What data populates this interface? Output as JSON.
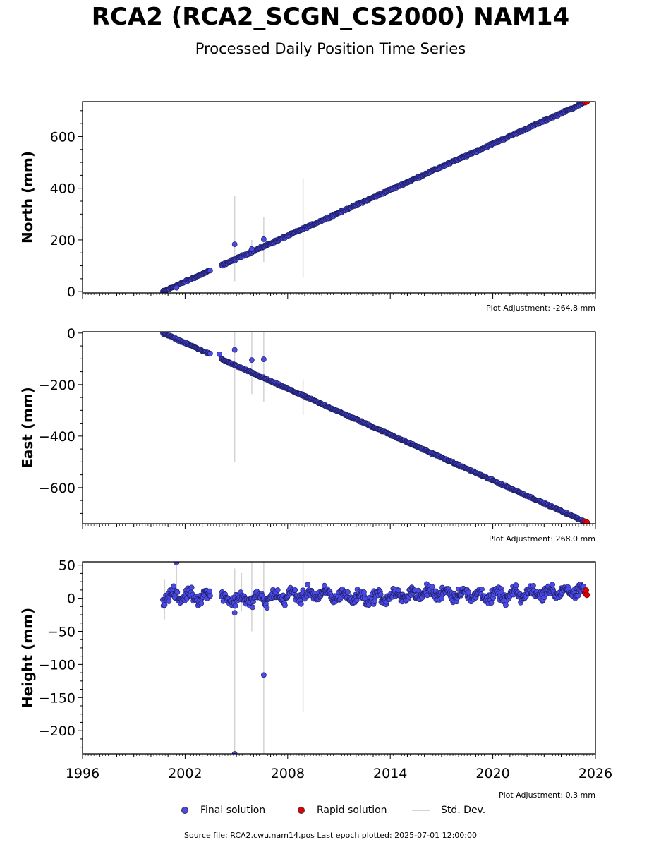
{
  "title": "RCA2 (RCA2_SCGN_CS2000) NAM14",
  "subtitle": "Processed Daily Position Time Series",
  "legend": {
    "final": "Final solution",
    "rapid": "Rapid solution",
    "stddev": "Std. Dev."
  },
  "colors": {
    "final": "#4a4ae8",
    "final_edge": "#1a1a55",
    "rapid": "#e00000",
    "stddev": "#d3d3d3"
  },
  "source_text": "Source file: RCA2.cwu.nam14.pos  Last epoch plotted: 2025-07-01 12:00:00",
  "chart_data": [
    {
      "type": "scatter",
      "ylabel": "North (mm)",
      "adjustment": "Plot Adjustment: -264.8 mm",
      "xlim": [
        1996,
        2026
      ],
      "ylim": [
        -5,
        735
      ],
      "yticks": [
        0,
        200,
        400,
        600
      ],
      "trend": {
        "x0": 2000.7,
        "y0": 0,
        "x1": 2025.5,
        "y1": 735
      },
      "outliers": [
        [
          2001.5,
          15
        ],
        [
          2004.9,
          183
        ],
        [
          2006.6,
          203
        ],
        [
          2005.9,
          165
        ]
      ],
      "errorbars": [
        [
          2004.9,
          40,
          370
        ],
        [
          2006.6,
          115,
          290
        ],
        [
          2005.9,
          140,
          200
        ],
        [
          2008.9,
          55,
          438
        ]
      ],
      "gaps": [
        [
          2003.5,
          2004.1
        ]
      ],
      "rapid": [
        [
          2025.4,
          732
        ],
        [
          2025.5,
          735
        ]
      ],
      "noise": 3
    },
    {
      "type": "scatter",
      "ylabel": "East (mm)",
      "adjustment": "Plot Adjustment: 268.0 mm",
      "xlim": [
        1996,
        2026
      ],
      "ylim": [
        -740,
        5
      ],
      "yticks": [
        0,
        -200,
        -400,
        -600
      ],
      "trend": {
        "x0": 2000.7,
        "y0": 0,
        "x1": 2025.5,
        "y1": -735
      },
      "outliers": [
        [
          2004.0,
          -82
        ],
        [
          2004.9,
          -65
        ],
        [
          2005.9,
          -105
        ],
        [
          2006.6,
          -102
        ]
      ],
      "errorbars": [
        [
          2004.9,
          -500,
          5
        ],
        [
          2005.9,
          -237,
          5
        ],
        [
          2006.6,
          -267,
          5
        ],
        [
          2008.9,
          -318,
          -180
        ]
      ],
      "gaps": [
        [
          2003.5,
          2004.1
        ]
      ],
      "rapid": [
        [
          2025.4,
          -732
        ],
        [
          2025.5,
          -735
        ]
      ],
      "noise": 2.5
    },
    {
      "type": "scatter",
      "ylabel": "Height (mm)",
      "adjustment": "Plot Adjustment: 0.3 mm",
      "xlabel": "",
      "xlim": [
        1996,
        2026
      ],
      "xticks": [
        1996,
        2002,
        2008,
        2014,
        2020,
        2026
      ],
      "ylim": [
        -235,
        55
      ],
      "yticks": [
        50,
        0,
        -50,
        -100,
        -150,
        -200
      ],
      "trend": {
        "x0": 2000.7,
        "y0": 0,
        "x1": 2025.5,
        "y1": 8
      },
      "outliers": [
        [
          2001.5,
          54
        ],
        [
          2004.9,
          -235
        ],
        [
          2006.6,
          -116
        ],
        [
          2004.9,
          -22
        ]
      ],
      "errorbars": [
        [
          2004.9,
          -235,
          45
        ],
        [
          2005.9,
          -50,
          55
        ],
        [
          2006.6,
          -235,
          55
        ],
        [
          2008.9,
          -172,
          55
        ],
        [
          2005.3,
          -20,
          38
        ],
        [
          2000.8,
          -32,
          28
        ],
        [
          2001.5,
          -8,
          55
        ]
      ],
      "gaps": [
        [
          2003.5,
          2004.1
        ]
      ],
      "rapid": [
        [
          2025.4,
          8
        ],
        [
          2025.45,
          12
        ],
        [
          2025.5,
          5
        ]
      ],
      "noise": 7,
      "seasonal_amp": 6
    }
  ]
}
